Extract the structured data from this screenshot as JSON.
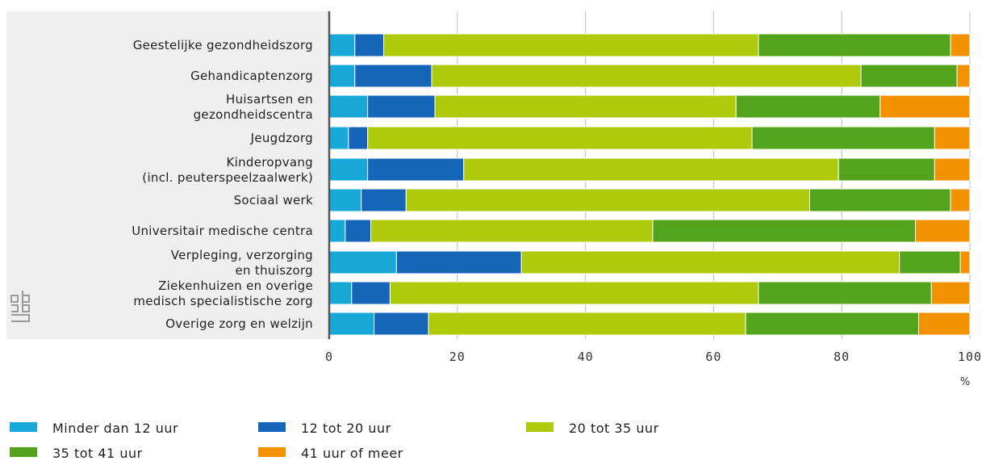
{
  "chart_data": {
    "type": "bar",
    "orientation": "horizontal",
    "stacked": true,
    "title": "",
    "x_unit": "%",
    "xlim": [
      0,
      100
    ],
    "x_ticks": [
      "0",
      "20",
      "40",
      "60",
      "80",
      "100"
    ],
    "grid": true,
    "legend_position": "bottom",
    "categories": [
      [
        "Geestelijke gezondheidszorg"
      ],
      [
        "Gehandicaptenzorg"
      ],
      [
        "Huisartsen en",
        "gezondheidscentra"
      ],
      [
        "Jeugdzorg"
      ],
      [
        "Kinderopvang",
        "(incl. peuterspeelzaalwerk)"
      ],
      [
        "Sociaal werk"
      ],
      [
        "Universitair medische centra"
      ],
      [
        "Verpleging, verzorging",
        "en thuiszorg"
      ],
      [
        "Ziekenhuizen en overige",
        "medisch specialistische zorg"
      ],
      [
        "Overige zorg en welzijn"
      ]
    ],
    "series": [
      {
        "name": "Minder dan 12 uur",
        "color": "#16a9d8",
        "values": [
          4,
          4,
          6,
          3,
          6,
          5,
          2.5,
          10.5,
          3.5,
          7
        ]
      },
      {
        "name": "12 tot 20 uur",
        "color": "#1566b8",
        "values": [
          4.5,
          12,
          10.5,
          3,
          15,
          7,
          4,
          19.5,
          6,
          8.5
        ]
      },
      {
        "name": "20 tot 35 uur",
        "color": "#afca0b",
        "values": [
          58.5,
          67,
          47,
          60,
          58.5,
          63,
          44,
          59,
          57.5,
          49.5
        ]
      },
      {
        "name": "35 tot 41 uur",
        "color": "#53a31d",
        "values": [
          30,
          15,
          22.5,
          28.5,
          15,
          22,
          41,
          9.5,
          27,
          27
        ]
      },
      {
        "name": "41 uur of meer",
        "color": "#f39200",
        "values": [
          3,
          2,
          14,
          5.5,
          5.5,
          3,
          8.5,
          1.5,
          6,
          8
        ]
      }
    ]
  },
  "watermark": "cbs"
}
